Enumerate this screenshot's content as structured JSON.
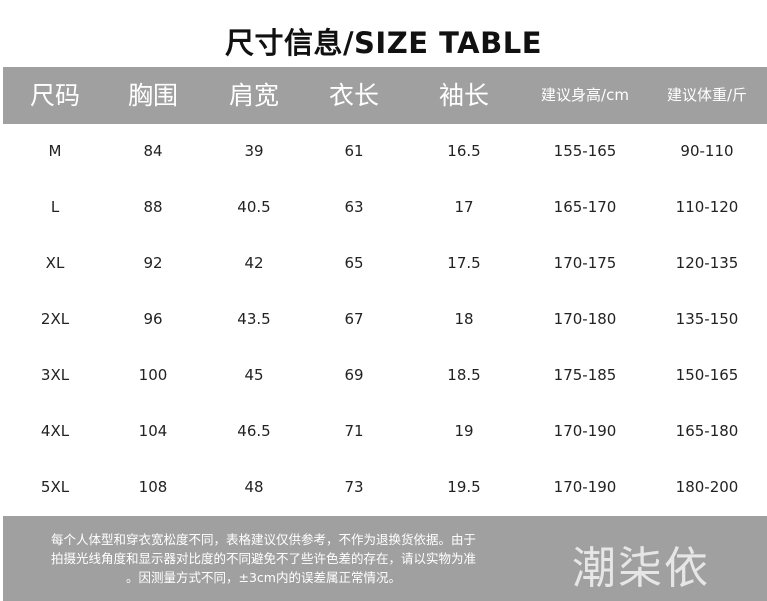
{
  "title": "尺寸信息/SIZE TABLE",
  "headers": [
    "尺码",
    "胸围",
    "肩宽",
    "衣长",
    "袖长",
    "建议身高/cm",
    "建议体重/斤"
  ],
  "rows": [
    [
      "M",
      "84",
      "39",
      "61",
      "16.5",
      "155-165",
      "90-110"
    ],
    [
      "L",
      "88",
      "40.5",
      "63",
      "17",
      "165-170",
      "110-120"
    ],
    [
      "XL",
      "92",
      "42",
      "65",
      "17.5",
      "170-175",
      "120-135"
    ],
    [
      "2XL",
      "96",
      "43.5",
      "67",
      "18",
      "170-180",
      "135-150"
    ],
    [
      "3XL",
      "100",
      "45",
      "69",
      "18.5",
      "175-185",
      "150-165"
    ],
    [
      "4XL",
      "104",
      "46.5",
      "71",
      "19",
      "170-190",
      "165-180"
    ],
    [
      "5XL",
      "108",
      "48",
      "73",
      "19.5",
      "170-190",
      "180-200"
    ]
  ],
  "note": [
    "每个人体型和穿衣宽松度不同，表格建议仅供参考，不作为退换货依据。由于",
    "拍摄光线角度和显示器对比度的不同避免不了些许色差的存在，请以实物为准",
    "。因测量方式不同，±3cm内的误差属正常情况。"
  ],
  "brand": "潮柒依",
  "colors": {
    "bar": "#a0a0a0",
    "bar_text": "#ffffff",
    "cell_text": "#222222"
  }
}
